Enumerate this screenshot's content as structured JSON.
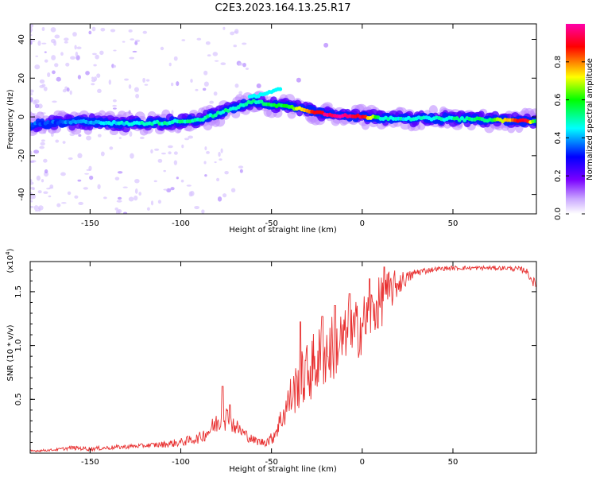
{
  "title": "C2E3.2023.164.13.25.R17",
  "chart_data": [
    {
      "type": "heatmap",
      "name": "spectrogram",
      "xlabel": "Height of straight line (km)",
      "ylabel": "Frequency (Hz)",
      "xlim": [
        -183,
        96
      ],
      "ylim": [
        -50,
        48
      ],
      "xticks": [
        -150,
        -100,
        -50,
        0,
        50
      ],
      "yticks": [
        -40,
        -20,
        0,
        20,
        40
      ],
      "colorbar": {
        "label": "Normalized spectral amplitude",
        "range": [
          0,
          1
        ],
        "ticks": [
          "0.0",
          "0.2",
          "0.4",
          "0.6",
          "0.8"
        ],
        "colors": [
          "#ffffff",
          "#7a00ff",
          "#0000ff",
          "#00ffff",
          "#00ff00",
          "#ffff00",
          "#ff0000",
          "#ff00aa"
        ]
      },
      "ridge": {
        "x": [
          -183,
          -170,
          -150,
          -130,
          -110,
          -90,
          -75,
          -60,
          -50,
          -40,
          -30,
          -20,
          -10,
          0,
          10,
          30,
          50,
          70,
          90,
          96
        ],
        "y": [
          -4,
          -3,
          -2.5,
          -3.5,
          -3,
          -1.5,
          3,
          8,
          6.5,
          5,
          3.5,
          1.5,
          0.5,
          0,
          -0.5,
          -0.8,
          -1,
          -1.5,
          -2,
          -2.5
        ],
        "amplitude": [
          0.35,
          0.35,
          0.4,
          0.45,
          0.5,
          0.5,
          0.5,
          0.5,
          0.55,
          0.6,
          0.8,
          0.95,
          1.0,
          0.9,
          0.5,
          0.45,
          0.5,
          0.55,
          0.95,
          0.5
        ]
      }
    },
    {
      "type": "line",
      "name": "snr",
      "xlabel": "Height of straight line (km)",
      "ylabel": "SNR (10 * v/v)",
      "ymultiplier": "(x10",
      "ymultiplier_exp": "4",
      "ymultiplier_close": ")",
      "xlim": [
        -183,
        96
      ],
      "ylim": [
        0,
        1.78
      ],
      "xticks": [
        -150,
        -100,
        -50,
        0,
        50
      ],
      "yticks": [
        "0.5",
        "1.0",
        "1.5"
      ],
      "color": "#e83030",
      "x": [
        -183,
        -170,
        -160,
        -150,
        -140,
        -130,
        -120,
        -110,
        -100,
        -90,
        -85,
        -80,
        -76,
        -73,
        -70,
        -65,
        -60,
        -55,
        -50,
        -45,
        -40,
        -35,
        -30,
        -25,
        -20,
        -15,
        -10,
        -5,
        0,
        5,
        10,
        15,
        20,
        25,
        30,
        40,
        50,
        60,
        70,
        80,
        90,
        96
      ],
      "y": [
        0.02,
        0.03,
        0.05,
        0.04,
        0.05,
        0.06,
        0.07,
        0.08,
        0.1,
        0.14,
        0.2,
        0.28,
        0.35,
        0.3,
        0.25,
        0.18,
        0.12,
        0.1,
        0.13,
        0.3,
        0.5,
        0.65,
        0.75,
        0.85,
        0.92,
        1.0,
        1.05,
        1.1,
        1.2,
        1.3,
        1.4,
        1.5,
        1.58,
        1.63,
        1.68,
        1.71,
        1.72,
        1.72,
        1.72,
        1.72,
        1.7,
        1.55
      ],
      "noise": [
        0.01,
        0.01,
        0.02,
        0.02,
        0.02,
        0.02,
        0.02,
        0.03,
        0.04,
        0.05,
        0.08,
        0.1,
        0.14,
        0.1,
        0.08,
        0.06,
        0.04,
        0.04,
        0.06,
        0.12,
        0.2,
        0.25,
        0.3,
        0.32,
        0.32,
        0.32,
        0.3,
        0.3,
        0.28,
        0.25,
        0.25,
        0.2,
        0.12,
        0.06,
        0.04,
        0.02,
        0.02,
        0.02,
        0.02,
        0.02,
        0.03,
        0.05
      ],
      "peaks": [
        {
          "x": -77,
          "y": 0.62
        },
        {
          "x": -73,
          "y": 0.45
        },
        {
          "x": -34,
          "y": 1.22
        },
        {
          "x": -22,
          "y": 1.27
        },
        {
          "x": -15,
          "y": 1.37
        },
        {
          "x": -7,
          "y": 1.48
        },
        {
          "x": 4,
          "y": 1.62
        },
        {
          "x": 12,
          "y": 1.73
        }
      ]
    }
  ]
}
